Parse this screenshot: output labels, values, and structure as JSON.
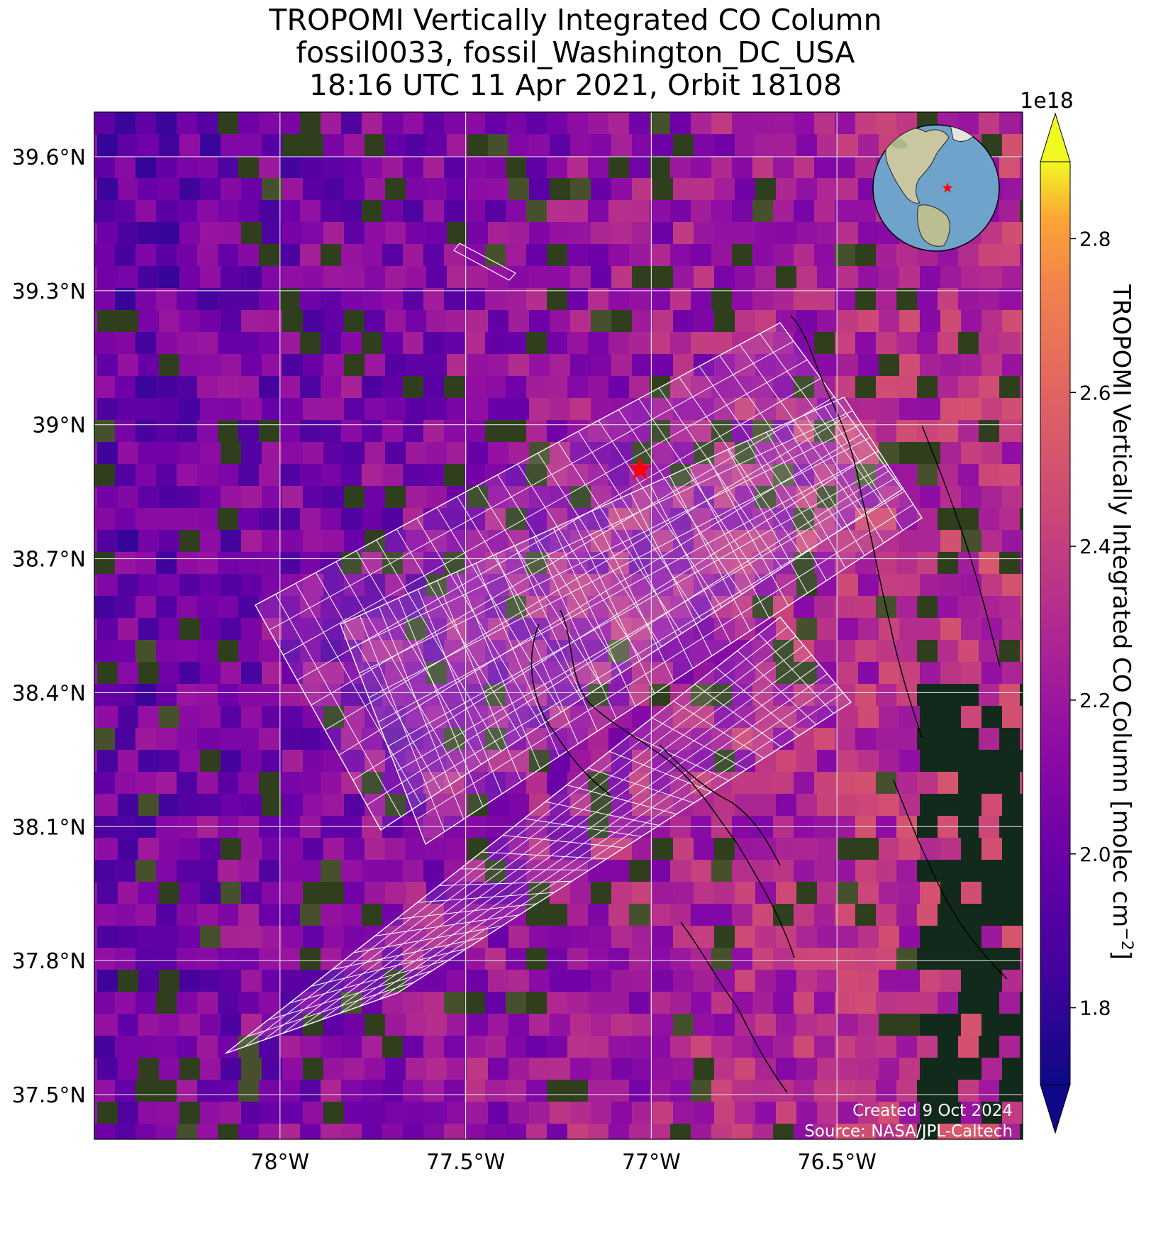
{
  "title": {
    "line1": "TROPOMI Vertically Integrated CO Column",
    "line2": "fossil0033, fossil_Washington_DC_USA",
    "line3": "18:16 UTC 11 Apr 2021, Orbit 18108"
  },
  "map": {
    "extent": {
      "lon_min": -78.5,
      "lon_max": -76.0,
      "lat_min": 37.4,
      "lat_max": 39.7
    },
    "lat_ticks": [
      {
        "value": 39.6,
        "label": "39.6°N"
      },
      {
        "value": 39.3,
        "label": "39.3°N"
      },
      {
        "value": 39.0,
        "label": "39°N"
      },
      {
        "value": 38.7,
        "label": "38.7°N"
      },
      {
        "value": 38.4,
        "label": "38.4°N"
      },
      {
        "value": 38.1,
        "label": "38.1°N"
      },
      {
        "value": 37.8,
        "label": "37.8°N"
      },
      {
        "value": 37.5,
        "label": "37.5°N"
      }
    ],
    "lon_ticks": [
      {
        "value": -78.0,
        "label": "78°W"
      },
      {
        "value": -77.5,
        "label": "77.5°W"
      },
      {
        "value": -77.0,
        "label": "77°W"
      },
      {
        "value": -76.5,
        "label": "76.5°W"
      }
    ],
    "target": {
      "name": "fossil_Washington_DC_USA",
      "lon": -77.03,
      "lat": 38.9,
      "marker": "red-star"
    },
    "grid": true,
    "credit_line1": "Created 9 Oct 2024",
    "credit_line2": "Source: NASA/JPL-Caltech",
    "inset_globe": {
      "position": "top-right",
      "center": "North America",
      "marker": "red-star"
    }
  },
  "colorbar": {
    "label": "TROPOMI Vertically Integrated CO Column [molec cm",
    "label_exponent": "−2",
    "label_close": "]",
    "multiplier": "1e18",
    "colormap": "plasma",
    "range": [
      1.7,
      2.9
    ],
    "ticks": [
      {
        "value": 1.8,
        "label": "1.8"
      },
      {
        "value": 2.0,
        "label": "2.0"
      },
      {
        "value": 2.2,
        "label": "2.2"
      },
      {
        "value": 2.4,
        "label": "2.4"
      },
      {
        "value": 2.6,
        "label": "2.6"
      },
      {
        "value": 2.8,
        "label": "2.8"
      }
    ]
  },
  "colors": {
    "grid": "#dddddd",
    "overlay": "#ffffff",
    "target": "#ff0000",
    "coast": "#000000",
    "credit": "#ffffff"
  }
}
